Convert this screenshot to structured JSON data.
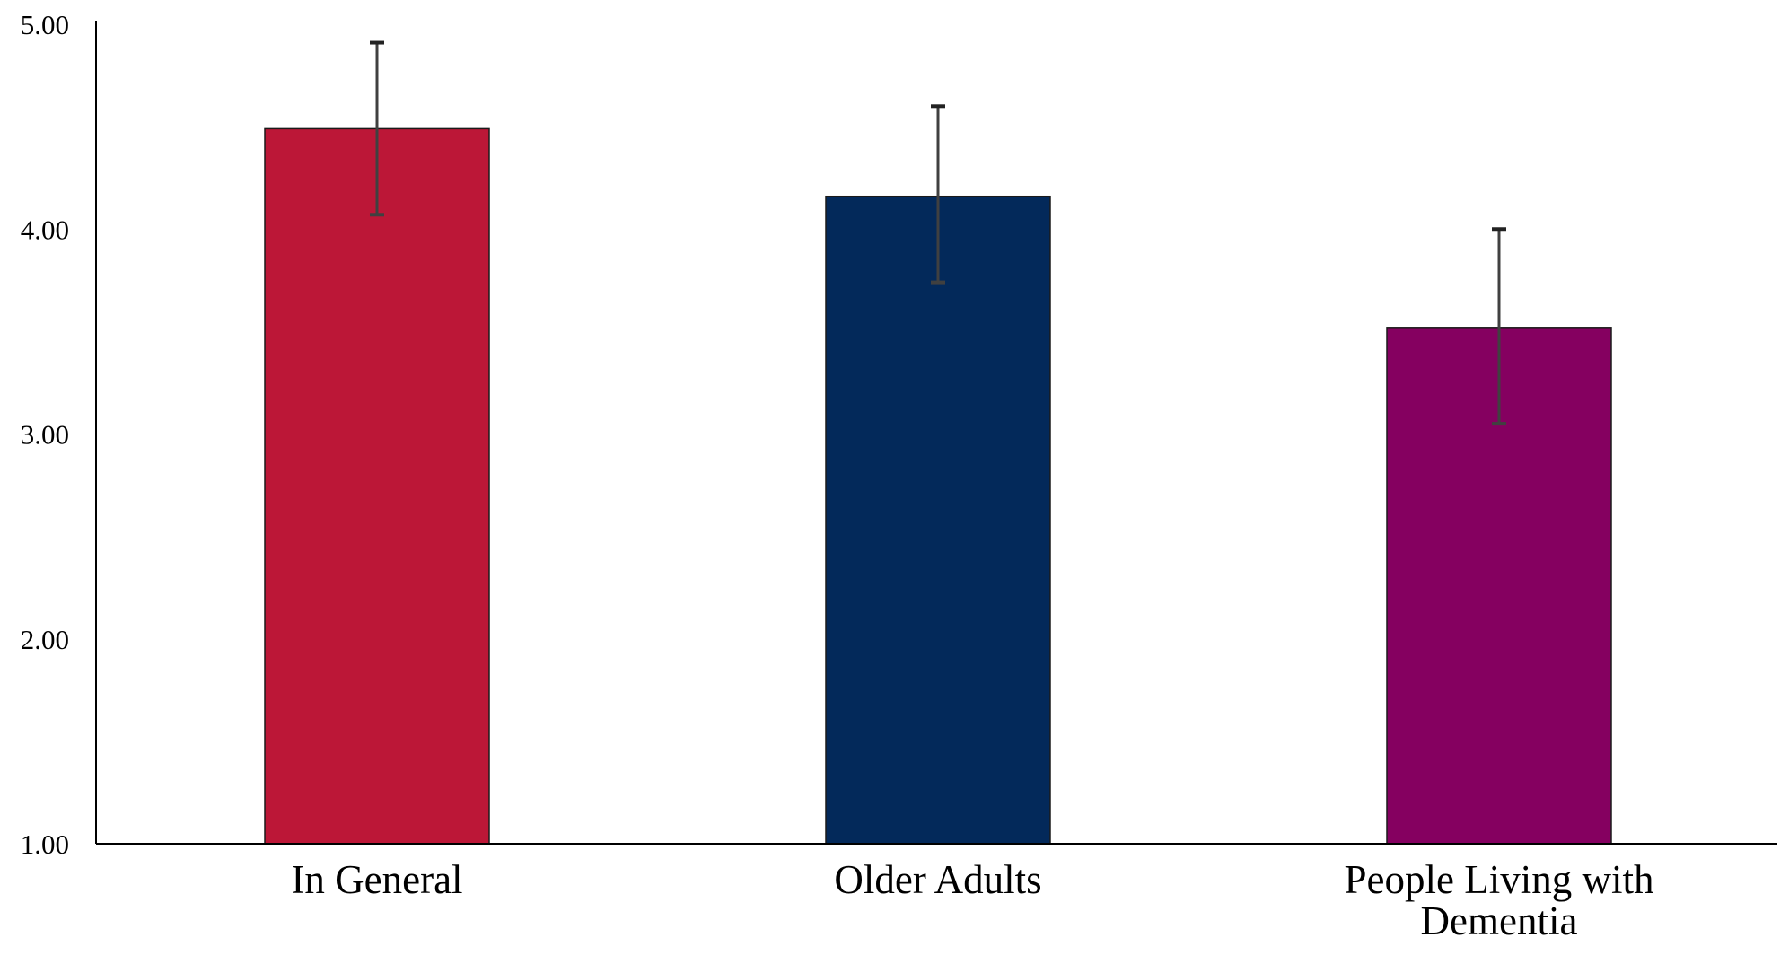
{
  "chart_data": {
    "type": "bar",
    "title": "",
    "xlabel": "",
    "ylabel": "",
    "categories": [
      [
        "In General"
      ],
      [
        "Older Adults"
      ],
      [
        "People Living with",
        "Dementia"
      ]
    ],
    "values": [
      4.49,
      4.16,
      3.52
    ],
    "error_low": [
      4.07,
      3.74,
      3.05
    ],
    "error_high": [
      4.91,
      4.6,
      4.0
    ],
    "ylim": [
      1.0,
      5.0
    ],
    "yticks": [
      1.0,
      2.0,
      3.0,
      4.0,
      5.0
    ],
    "ytick_labels": [
      "1.00",
      "2.00",
      "3.00",
      "4.00",
      "5.00"
    ],
    "colors": [
      "#BC1737",
      "#03295A",
      "#850060"
    ],
    "error_bar_color": "#404040",
    "grid": false,
    "legend": "none"
  }
}
